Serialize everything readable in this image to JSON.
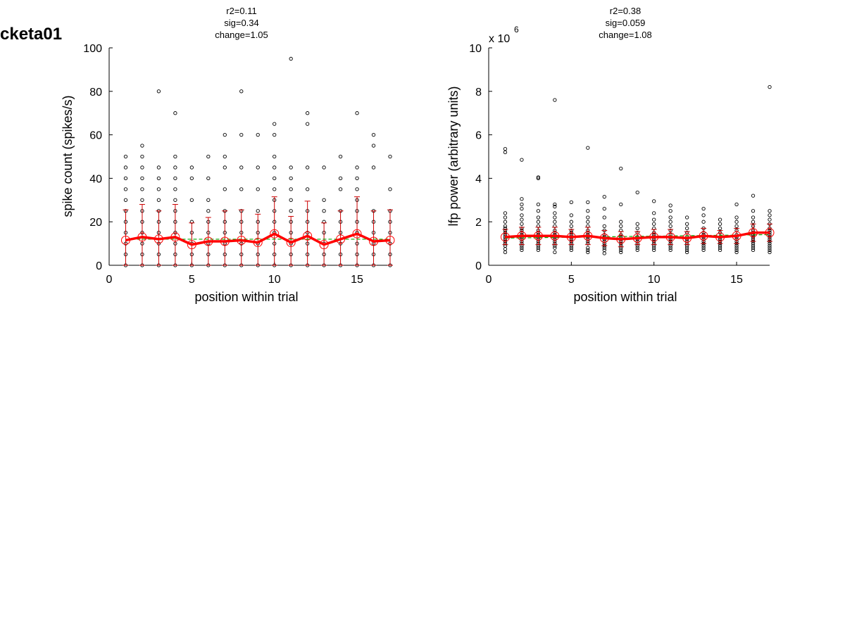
{
  "figure_label": "cketa01",
  "chart_data": [
    {
      "type": "scatter",
      "stats": [
        "r2=0.11",
        "sig=0.34",
        "change=1.05"
      ],
      "xlabel": "position within trial",
      "ylabel": "spike count (spikes/s)",
      "xlim": [
        0,
        17
      ],
      "ylim": [
        0,
        100
      ],
      "xticks": [
        0,
        5,
        10,
        15
      ],
      "yticks": [
        0,
        20,
        40,
        60,
        80,
        100
      ],
      "exponent_label": "",
      "colors": {
        "points": "#000000",
        "mean": "#ff0000",
        "fit": "#00aa00"
      },
      "points": [
        {
          "x": 1,
          "y": [
            0,
            5,
            10,
            15,
            20,
            25,
            30,
            35,
            40,
            45,
            50
          ]
        },
        {
          "x": 2,
          "y": [
            0,
            5,
            10,
            15,
            20,
            25,
            30,
            35,
            40,
            45,
            50,
            55
          ]
        },
        {
          "x": 3,
          "y": [
            0,
            5,
            10,
            15,
            20,
            25,
            30,
            35,
            40,
            45,
            80
          ]
        },
        {
          "x": 4,
          "y": [
            0,
            5,
            10,
            15,
            20,
            25,
            30,
            35,
            40,
            45,
            50,
            70
          ]
        },
        {
          "x": 5,
          "y": [
            0,
            5,
            10,
            15,
            20,
            30,
            40,
            45
          ]
        },
        {
          "x": 6,
          "y": [
            0,
            5,
            10,
            15,
            20,
            25,
            30,
            40,
            50
          ]
        },
        {
          "x": 7,
          "y": [
            0,
            5,
            10,
            15,
            20,
            25,
            35,
            45,
            50,
            60
          ]
        },
        {
          "x": 8,
          "y": [
            0,
            5,
            10,
            15,
            20,
            25,
            35,
            45,
            60,
            80
          ]
        },
        {
          "x": 9,
          "y": [
            0,
            5,
            10,
            15,
            20,
            25,
            35,
            45,
            60
          ]
        },
        {
          "x": 10,
          "y": [
            0,
            5,
            10,
            15,
            20,
            25,
            30,
            35,
            40,
            45,
            50,
            60,
            65
          ]
        },
        {
          "x": 11,
          "y": [
            0,
            5,
            10,
            15,
            20,
            25,
            30,
            35,
            40,
            45,
            95
          ]
        },
        {
          "x": 12,
          "y": [
            0,
            5,
            10,
            15,
            20,
            25,
            35,
            45,
            65,
            70
          ]
        },
        {
          "x": 13,
          "y": [
            0,
            5,
            10,
            15,
            20,
            25,
            30,
            45
          ]
        },
        {
          "x": 14,
          "y": [
            0,
            5,
            10,
            15,
            20,
            25,
            35,
            40,
            50
          ]
        },
        {
          "x": 15,
          "y": [
            0,
            5,
            10,
            15,
            20,
            25,
            30,
            35,
            40,
            45,
            70
          ]
        },
        {
          "x": 16,
          "y": [
            0,
            5,
            10,
            15,
            20,
            25,
            45,
            55,
            60
          ]
        },
        {
          "x": 17,
          "y": [
            0,
            5,
            10,
            15,
            20,
            25,
            35,
            50
          ]
        }
      ],
      "mean": [
        11.5,
        13,
        12,
        13,
        9.5,
        11,
        11,
        11.5,
        10.5,
        14.5,
        10.5,
        13.5,
        9.5,
        12,
        14.5,
        11,
        11.5
      ],
      "error": [
        14,
        15,
        13,
        15,
        10,
        11,
        14,
        14,
        13,
        17,
        12,
        16,
        10,
        13,
        17,
        14,
        14
      ],
      "fit": [
        12,
        12,
        12,
        12,
        12,
        12,
        12,
        12,
        12,
        12,
        12,
        12,
        12,
        12,
        12,
        12,
        12
      ]
    },
    {
      "type": "scatter",
      "stats": [
        "r2=0.38",
        "sig=0.059",
        "change=1.08"
      ],
      "xlabel": "position within trial",
      "ylabel": "lfp power (arbitrary units)",
      "xlim": [
        0,
        17
      ],
      "ylim": [
        0,
        10
      ],
      "xticks": [
        0,
        5,
        10,
        15
      ],
      "yticks": [
        0,
        2,
        4,
        6,
        8,
        10
      ],
      "exponent_label": "x 10",
      "exponent_power": "6",
      "colors": {
        "points": "#000000",
        "mean": "#ff0000",
        "fit": "#00aa00"
      },
      "points": [
        {
          "x": 1,
          "y": [
            0.6,
            0.75,
            0.9,
            1.0,
            1.1,
            1.2,
            1.3,
            1.4,
            1.5,
            1.6,
            1.7,
            1.8,
            2.0,
            2.2,
            2.4,
            5.2,
            5.35
          ]
        },
        {
          "x": 2,
          "y": [
            0.7,
            0.8,
            0.9,
            1.0,
            1.1,
            1.2,
            1.3,
            1.4,
            1.5,
            1.6,
            1.7,
            1.9,
            2.1,
            2.3,
            2.6,
            2.8,
            3.05,
            4.85
          ]
        },
        {
          "x": 3,
          "y": [
            0.7,
            0.8,
            0.9,
            1.0,
            1.1,
            1.2,
            1.3,
            1.4,
            1.5,
            1.6,
            1.8,
            2.0,
            2.2,
            2.5,
            2.8,
            4.0,
            4.05
          ]
        },
        {
          "x": 4,
          "y": [
            0.6,
            0.8,
            0.9,
            1.0,
            1.1,
            1.2,
            1.3,
            1.4,
            1.5,
            1.6,
            1.8,
            2.0,
            2.2,
            2.4,
            2.7,
            2.8,
            7.6
          ]
        },
        {
          "x": 5,
          "y": [
            0.7,
            0.8,
            0.9,
            1.0,
            1.1,
            1.2,
            1.3,
            1.4,
            1.5,
            1.6,
            1.8,
            2.0,
            2.3,
            2.9
          ]
        },
        {
          "x": 6,
          "y": [
            0.6,
            0.7,
            0.8,
            1.0,
            1.1,
            1.2,
            1.3,
            1.4,
            1.5,
            1.6,
            1.8,
            2.0,
            2.2,
            2.5,
            2.9,
            5.4
          ]
        },
        {
          "x": 7,
          "y": [
            0.55,
            0.7,
            0.8,
            0.9,
            1.0,
            1.1,
            1.2,
            1.3,
            1.4,
            1.6,
            1.8,
            2.2,
            2.6,
            3.15
          ]
        },
        {
          "x": 8,
          "y": [
            0.6,
            0.7,
            0.8,
            0.9,
            1.0,
            1.1,
            1.2,
            1.3,
            1.4,
            1.6,
            1.8,
            2.0,
            2.8,
            4.45
          ]
        },
        {
          "x": 9,
          "y": [
            0.7,
            0.8,
            0.9,
            1.0,
            1.1,
            1.2,
            1.3,
            1.5,
            1.7,
            1.9,
            3.35
          ]
        },
        {
          "x": 10,
          "y": [
            0.7,
            0.8,
            0.9,
            1.0,
            1.1,
            1.2,
            1.3,
            1.4,
            1.5,
            1.7,
            1.9,
            2.1,
            2.4,
            2.95
          ]
        },
        {
          "x": 11,
          "y": [
            0.7,
            0.8,
            0.9,
            1.0,
            1.1,
            1.2,
            1.3,
            1.4,
            1.6,
            1.8,
            2.0,
            2.2,
            2.5,
            2.75
          ]
        },
        {
          "x": 12,
          "y": [
            0.6,
            0.7,
            0.8,
            0.9,
            1.0,
            1.1,
            1.2,
            1.3,
            1.5,
            1.7,
            1.9,
            2.2
          ]
        },
        {
          "x": 13,
          "y": [
            0.7,
            0.8,
            0.9,
            1.0,
            1.1,
            1.2,
            1.3,
            1.4,
            1.5,
            1.7,
            2.0,
            2.3,
            2.6
          ]
        },
        {
          "x": 14,
          "y": [
            0.7,
            0.8,
            0.9,
            1.0,
            1.1,
            1.2,
            1.3,
            1.5,
            1.7,
            1.9,
            2.1
          ]
        },
        {
          "x": 15,
          "y": [
            0.6,
            0.7,
            0.8,
            0.9,
            1.0,
            1.1,
            1.2,
            1.3,
            1.4,
            1.6,
            1.8,
            2.0,
            2.2,
            2.8
          ]
        },
        {
          "x": 16,
          "y": [
            0.7,
            0.8,
            0.9,
            1.0,
            1.1,
            1.2,
            1.3,
            1.4,
            1.5,
            1.6,
            1.8,
            2.0,
            2.2,
            2.5,
            3.2
          ]
        },
        {
          "x": 17,
          "y": [
            0.6,
            0.7,
            0.8,
            0.9,
            1.0,
            1.1,
            1.2,
            1.3,
            1.4,
            1.5,
            1.6,
            1.7,
            1.9,
            2.1,
            2.3,
            2.5,
            8.2
          ]
        }
      ],
      "mean": [
        1.3,
        1.35,
        1.35,
        1.35,
        1.3,
        1.35,
        1.25,
        1.2,
        1.25,
        1.3,
        1.3,
        1.25,
        1.35,
        1.3,
        1.35,
        1.5,
        1.5
      ],
      "error": [
        0.35,
        0.4,
        0.4,
        0.4,
        0.35,
        0.4,
        0.35,
        0.35,
        0.3,
        0.35,
        0.35,
        0.3,
        0.35,
        0.3,
        0.35,
        0.4,
        0.4
      ],
      "fit": [
        1.25,
        1.26,
        1.27,
        1.28,
        1.29,
        1.3,
        1.31,
        1.32,
        1.33,
        1.34,
        1.35,
        1.36,
        1.37,
        1.38,
        1.39,
        1.4,
        1.41
      ]
    }
  ]
}
